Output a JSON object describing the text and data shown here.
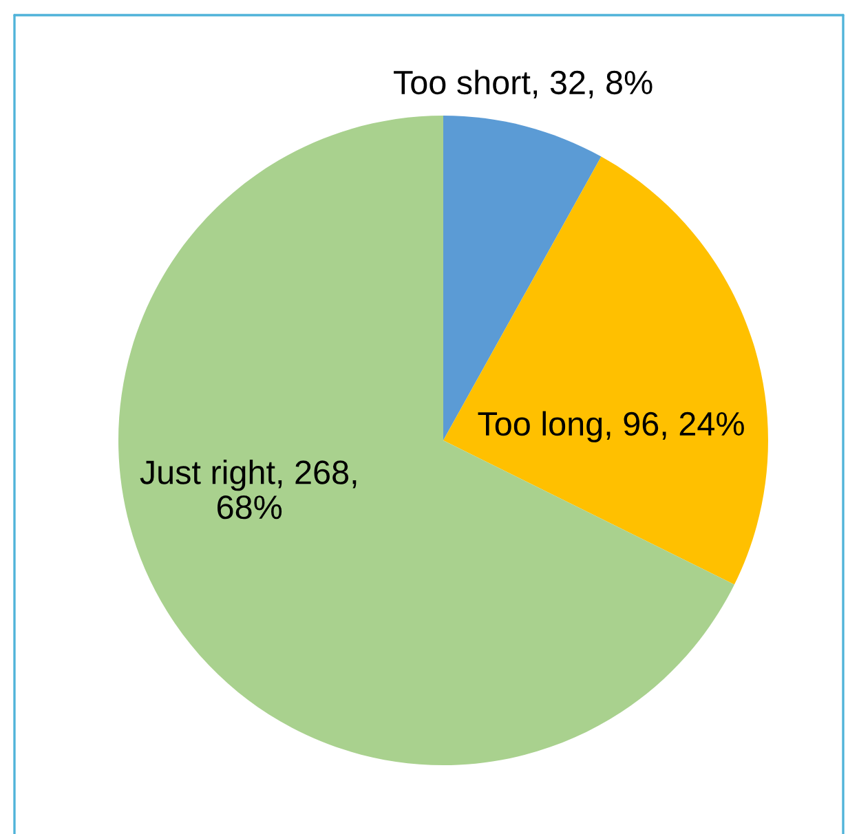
{
  "chart_data": {
    "type": "pie",
    "categories": [
      "Too short",
      "Too long",
      "Just right"
    ],
    "values": [
      32,
      96,
      268
    ],
    "colors": [
      "#5b9bd5",
      "#ffc000",
      "#a9d18e"
    ],
    "value_labels": [
      "32, 8%",
      "96, 24%",
      "268, 68%"
    ]
  }
}
